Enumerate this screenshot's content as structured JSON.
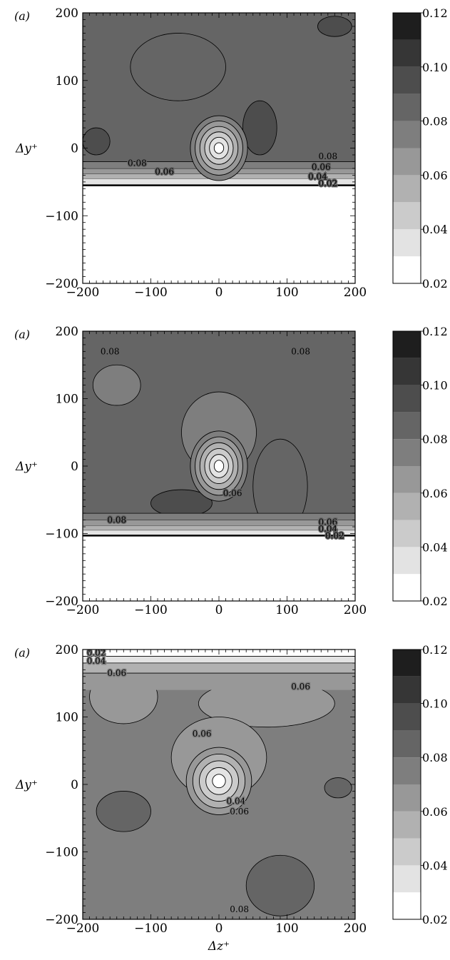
{
  "figure": {
    "panel_label": "(a)",
    "xlabel": "Δz⁺",
    "ylabel": "Δy⁺"
  },
  "colors": {
    "levels": [
      "#ffffff",
      "#e3e3e3",
      "#cbcbcb",
      "#b1b1b1",
      "#989898",
      "#7e7e7e",
      "#656565",
      "#4d4d4d",
      "#363636",
      "#1e1e1e"
    ]
  },
  "chart_data": [
    {
      "type": "heatmap",
      "panel_label": "(a)",
      "xlabel": "",
      "ylabel": "Δy⁺",
      "xlim": [
        -200,
        200
      ],
      "ylim": [
        -200,
        200
      ],
      "xticks": [
        -200,
        -100,
        0,
        100,
        200
      ],
      "yticks": [
        -200,
        -100,
        0,
        100,
        200
      ],
      "colorbar": {
        "ticks": [
          0.02,
          0.04,
          0.06,
          0.08,
          0.1,
          0.12
        ],
        "range": [
          0.02,
          0.12
        ],
        "levels": 10
      },
      "background_level": 0.085,
      "wall_y": -55,
      "bands": [
        {
          "y0": -55,
          "y1": -45,
          "value": 0.035
        },
        {
          "y0": -45,
          "y1": -38,
          "value": 0.05
        },
        {
          "y0": -38,
          "y1": -30,
          "value": 0.065
        },
        {
          "y0": -30,
          "y1": -20,
          "value": 0.075
        }
      ],
      "patches": [
        {
          "x": 60,
          "y": 30,
          "rx": 25,
          "ry": 40,
          "value": 0.095
        },
        {
          "x": -60,
          "y": 120,
          "rx": 70,
          "ry": 50,
          "value": 0.09
        },
        {
          "x": 170,
          "y": 180,
          "rx": 25,
          "ry": 15,
          "value": 0.095
        },
        {
          "x": -180,
          "y": 10,
          "rx": 20,
          "ry": 20,
          "value": 0.095
        }
      ],
      "core": {
        "x": 0,
        "y": 0,
        "rx": 42,
        "ry": 48,
        "values": [
          0.075,
          0.065,
          0.055,
          0.045,
          0.035,
          0.025
        ]
      },
      "contour_labels": [
        {
          "x": -120,
          "y": -22,
          "text": "0.08"
        },
        {
          "x": -80,
          "y": -35,
          "text": "0.06"
        },
        {
          "x": 160,
          "y": -12,
          "text": "0.08"
        },
        {
          "x": 150,
          "y": -28,
          "text": "0.06"
        },
        {
          "x": 145,
          "y": -42,
          "text": "0.04"
        },
        {
          "x": 160,
          "y": -52,
          "text": "0.02"
        }
      ]
    },
    {
      "type": "heatmap",
      "panel_label": "(a)",
      "xlabel": "",
      "ylabel": "Δy⁺",
      "xlim": [
        -200,
        200
      ],
      "ylim": [
        -200,
        200
      ],
      "xticks": [
        -200,
        -100,
        0,
        100,
        200
      ],
      "yticks": [
        -200,
        -100,
        0,
        100,
        200
      ],
      "colorbar": {
        "ticks": [
          0.02,
          0.04,
          0.06,
          0.08,
          0.1,
          0.12
        ],
        "range": [
          0.02,
          0.12
        ],
        "levels": 10
      },
      "background_level": 0.085,
      "wall_y": -103,
      "bands": [
        {
          "y0": -103,
          "y1": -95,
          "value": 0.035
        },
        {
          "y0": -95,
          "y1": -88,
          "value": 0.05
        },
        {
          "y0": -88,
          "y1": -80,
          "value": 0.065
        },
        {
          "y0": -80,
          "y1": -70,
          "value": 0.075
        }
      ],
      "patches": [
        {
          "x": -55,
          "y": -55,
          "rx": 45,
          "ry": 20,
          "value": 0.095
        },
        {
          "x": 90,
          "y": -30,
          "rx": 40,
          "ry": 70,
          "value": 0.09
        },
        {
          "x": -150,
          "y": 120,
          "rx": 35,
          "ry": 30,
          "value": 0.075
        },
        {
          "x": 0,
          "y": 50,
          "rx": 55,
          "ry": 60,
          "value": 0.075
        }
      ],
      "core": {
        "x": 0,
        "y": 0,
        "rx": 42,
        "ry": 52,
        "values": [
          0.075,
          0.065,
          0.055,
          0.045,
          0.035,
          0.025
        ]
      },
      "contour_labels": [
        {
          "x": -160,
          "y": 170,
          "text": "0.08"
        },
        {
          "x": 120,
          "y": 170,
          "text": "0.08"
        },
        {
          "x": -150,
          "y": -80,
          "text": "0.08"
        },
        {
          "x": 20,
          "y": -40,
          "text": "0.06"
        },
        {
          "x": 160,
          "y": -83,
          "text": "0.06"
        },
        {
          "x": 160,
          "y": -93,
          "text": "0.04"
        },
        {
          "x": 170,
          "y": -103,
          "text": "0.02"
        }
      ]
    },
    {
      "type": "heatmap",
      "panel_label": "(a)",
      "xlabel": "Δz⁺",
      "ylabel": "Δy⁺",
      "xlim": [
        -200,
        200
      ],
      "ylim": [
        -200,
        200
      ],
      "xticks": [
        -200,
        -100,
        0,
        100,
        200
      ],
      "yticks": [
        -200,
        -100,
        0,
        100,
        200
      ],
      "colorbar": {
        "ticks": [
          0.02,
          0.04,
          0.06,
          0.08,
          0.1,
          0.12
        ],
        "range": [
          0.02,
          0.12
        ],
        "levels": 10
      },
      "background_level": 0.075,
      "wall_y": null,
      "bands": [
        {
          "y0": 190,
          "y1": 200,
          "value": 0.025
        },
        {
          "y0": 180,
          "y1": 190,
          "value": 0.035
        },
        {
          "y0": 165,
          "y1": 180,
          "value": 0.05
        },
        {
          "y0": 140,
          "y1": 165,
          "value": 0.065
        }
      ],
      "patches": [
        {
          "x": -140,
          "y": 130,
          "rx": 50,
          "ry": 40,
          "value": 0.065
        },
        {
          "x": 70,
          "y": 120,
          "rx": 100,
          "ry": 35,
          "value": 0.065
        },
        {
          "x": 0,
          "y": 40,
          "rx": 70,
          "ry": 60,
          "value": 0.065
        },
        {
          "x": 90,
          "y": -150,
          "rx": 50,
          "ry": 45,
          "value": 0.085
        },
        {
          "x": -140,
          "y": -40,
          "rx": 40,
          "ry": 30,
          "value": 0.085
        },
        {
          "x": 175,
          "y": -5,
          "rx": 20,
          "ry": 15,
          "value": 0.085
        }
      ],
      "core": {
        "x": 0,
        "y": 5,
        "rx": 48,
        "ry": 50,
        "values": [
          0.065,
          0.055,
          0.045,
          0.035,
          0.025
        ]
      },
      "contour_labels": [
        {
          "x": -180,
          "y": 195,
          "text": "0.02"
        },
        {
          "x": -180,
          "y": 183,
          "text": "0.04"
        },
        {
          "x": -150,
          "y": 165,
          "text": "0.06"
        },
        {
          "x": 120,
          "y": 145,
          "text": "0.06"
        },
        {
          "x": -25,
          "y": 75,
          "text": "0.06"
        },
        {
          "x": 25,
          "y": -25,
          "text": "0.04"
        },
        {
          "x": 30,
          "y": -40,
          "text": "0.06"
        },
        {
          "x": 30,
          "y": -185,
          "text": "0.08"
        }
      ]
    }
  ]
}
